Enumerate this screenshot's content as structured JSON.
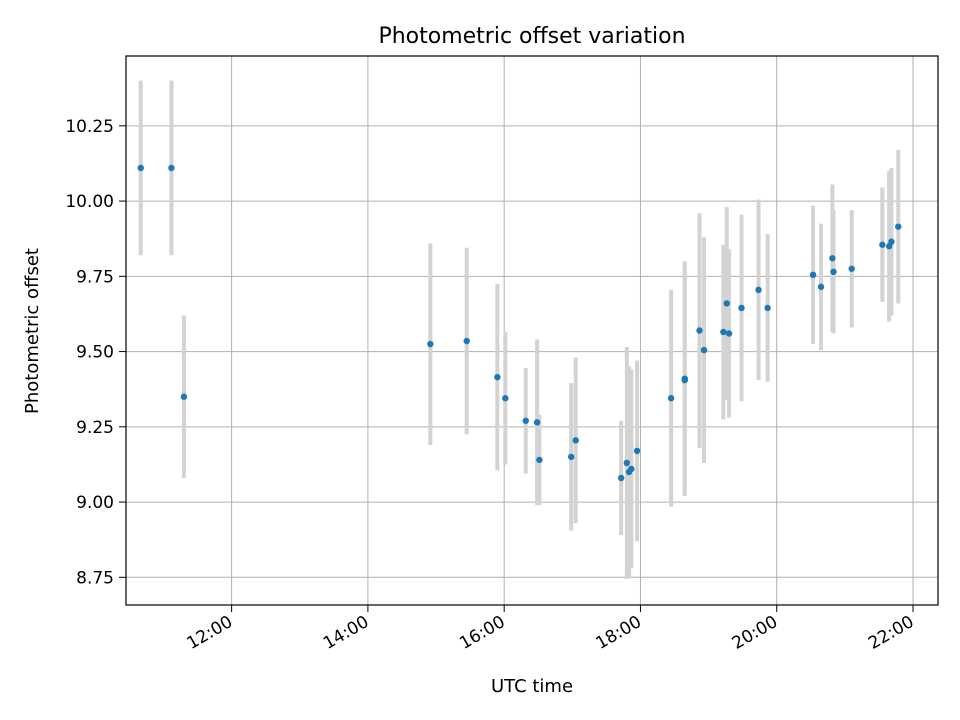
{
  "chart_data": {
    "type": "scatter",
    "title": "Photometric offset variation",
    "xlabel": "UTC time",
    "ylabel": "Photometric offset",
    "grid": true,
    "x_unit": "UTC time (HH:MM)",
    "xlim": [
      "10:27",
      "22:22"
    ],
    "ylim": [
      8.658,
      10.482
    ],
    "x_ticks": [
      "12:00",
      "14:00",
      "16:00",
      "18:00",
      "20:00",
      "22:00"
    ],
    "y_ticks": [
      "8.75",
      "9.00",
      "9.25",
      "9.50",
      "9.75",
      "10.00",
      "10.25"
    ],
    "marker_color": "#1f77b4",
    "errorbar_color": "#d3d3d3",
    "series": [
      {
        "points": [
          {
            "x": "10:40",
            "y": 10.11,
            "err": 0.29
          },
          {
            "x": "11:07",
            "y": 10.11,
            "err": 0.29
          },
          {
            "x": "11:18",
            "y": 9.35,
            "err": 0.27
          },
          {
            "x": "14:55",
            "y": 9.525,
            "err": 0.335
          },
          {
            "x": "15:27",
            "y": 9.535,
            "err": 0.31
          },
          {
            "x": "15:54",
            "y": 9.415,
            "err": 0.31
          },
          {
            "x": "16:01",
            "y": 9.345,
            "err": 0.22
          },
          {
            "x": "16:19",
            "y": 9.27,
            "err": 0.175
          },
          {
            "x": "16:29",
            "y": 9.265,
            "err": 0.275
          },
          {
            "x": "16:31",
            "y": 9.14,
            "err": 0.15
          },
          {
            "x": "16:59",
            "y": 9.15,
            "err": 0.245
          },
          {
            "x": "17:03",
            "y": 9.205,
            "err": 0.275
          },
          {
            "x": "17:43",
            "y": 9.08,
            "err": 0.19
          },
          {
            "x": "17:48",
            "y": 9.13,
            "err": 0.385
          },
          {
            "x": "17:50",
            "y": 9.1,
            "err": 0.35
          },
          {
            "x": "17:52",
            "y": 9.11,
            "err": 0.33
          },
          {
            "x": "17:57",
            "y": 9.17,
            "err": 0.3
          },
          {
            "x": "18:27",
            "y": 9.345,
            "err": 0.36
          },
          {
            "x": "18:39",
            "y": 9.405,
            "err": 0.38
          },
          {
            "x": "18:39",
            "y": 9.41,
            "err": 0.39
          },
          {
            "x": "18:52",
            "y": 9.57,
            "err": 0.39
          },
          {
            "x": "18:56",
            "y": 9.505,
            "err": 0.375
          },
          {
            "x": "19:13",
            "y": 9.565,
            "err": 0.29
          },
          {
            "x": "19:16",
            "y": 9.66,
            "err": 0.32
          },
          {
            "x": "19:18",
            "y": 9.56,
            "err": 0.28
          },
          {
            "x": "19:29",
            "y": 9.645,
            "err": 0.31
          },
          {
            "x": "19:44",
            "y": 9.705,
            "err": 0.3
          },
          {
            "x": "19:52",
            "y": 9.645,
            "err": 0.245
          },
          {
            "x": "20:32",
            "y": 9.755,
            "err": 0.23
          },
          {
            "x": "20:39",
            "y": 9.715,
            "err": 0.21
          },
          {
            "x": "20:49",
            "y": 9.81,
            "err": 0.245
          },
          {
            "x": "20:50",
            "y": 9.765,
            "err": 0.205
          },
          {
            "x": "21:06",
            "y": 9.775,
            "err": 0.195
          },
          {
            "x": "21:33",
            "y": 9.855,
            "err": 0.19
          },
          {
            "x": "21:39",
            "y": 9.85,
            "err": 0.25
          },
          {
            "x": "21:41",
            "y": 9.865,
            "err": 0.245
          },
          {
            "x": "21:47",
            "y": 9.915,
            "err": 0.255
          }
        ]
      }
    ]
  }
}
